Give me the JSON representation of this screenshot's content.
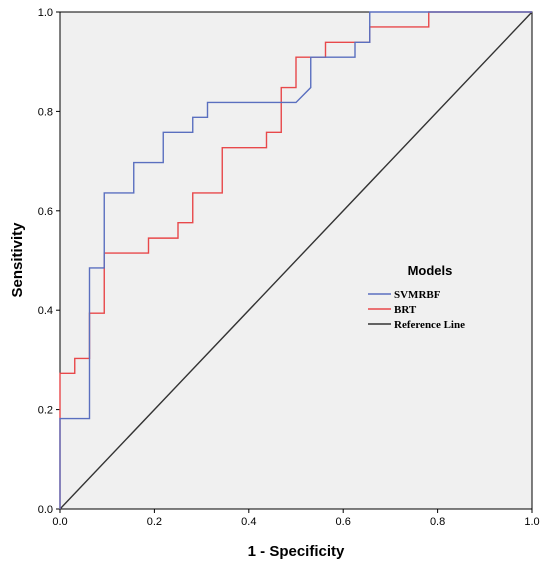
{
  "chart_data": {
    "type": "line",
    "xlabel": "1 - Specificity",
    "ylabel": "Sensitivity",
    "xlim": [
      0,
      1
    ],
    "ylim": [
      0,
      1
    ],
    "x_ticks": [
      "0.0",
      "0.2",
      "0.4",
      "0.6",
      "0.8",
      "1.0"
    ],
    "y_ticks": [
      "0.0",
      "0.2",
      "0.4",
      "0.6",
      "0.8",
      "1.0"
    ],
    "grid": false,
    "plot_background": "#f0f0f0",
    "legend": {
      "title": "Models",
      "placement": "center-right",
      "entries": [
        "SVMRBF",
        "BRT",
        "Reference Line"
      ]
    },
    "series": [
      {
        "name": "SVMRBF",
        "color": "#5a6fbf",
        "x": [
          0,
          0,
          0.0625,
          0.0625,
          0.09375,
          0.09375,
          0.15625,
          0.15625,
          0.21875,
          0.21875,
          0.28125,
          0.28125,
          0.3125,
          0.3125,
          0.5,
          0.53125,
          0.53125,
          0.625,
          0.625,
          0.65625,
          0.65625,
          1
        ],
        "y": [
          0,
          0.182,
          0.182,
          0.485,
          0.485,
          0.636,
          0.636,
          0.697,
          0.697,
          0.758,
          0.758,
          0.788,
          0.788,
          0.818,
          0.818,
          0.848,
          0.909,
          0.909,
          0.939,
          0.939,
          1,
          1
        ]
      },
      {
        "name": "BRT",
        "color": "#e8484a",
        "x": [
          0,
          0,
          0.03125,
          0.03125,
          0.0625,
          0.0625,
          0.09375,
          0.09375,
          0.1875,
          0.1875,
          0.25,
          0.25,
          0.28125,
          0.28125,
          0.34375,
          0.34375,
          0.4375,
          0.4375,
          0.46875,
          0.46875,
          0.5,
          0.5,
          0.5625,
          0.5625,
          0.65625,
          0.65625,
          0.78125,
          0.78125,
          1
        ],
        "y": [
          0,
          0.273,
          0.273,
          0.303,
          0.303,
          0.394,
          0.394,
          0.515,
          0.515,
          0.545,
          0.545,
          0.576,
          0.576,
          0.636,
          0.636,
          0.727,
          0.727,
          0.758,
          0.758,
          0.848,
          0.848,
          0.909,
          0.909,
          0.939,
          0.939,
          0.97,
          0.97,
          1,
          1
        ]
      },
      {
        "name": "Reference Line",
        "color": "#333333",
        "x": [
          0,
          1
        ],
        "y": [
          0,
          1
        ]
      }
    ]
  }
}
